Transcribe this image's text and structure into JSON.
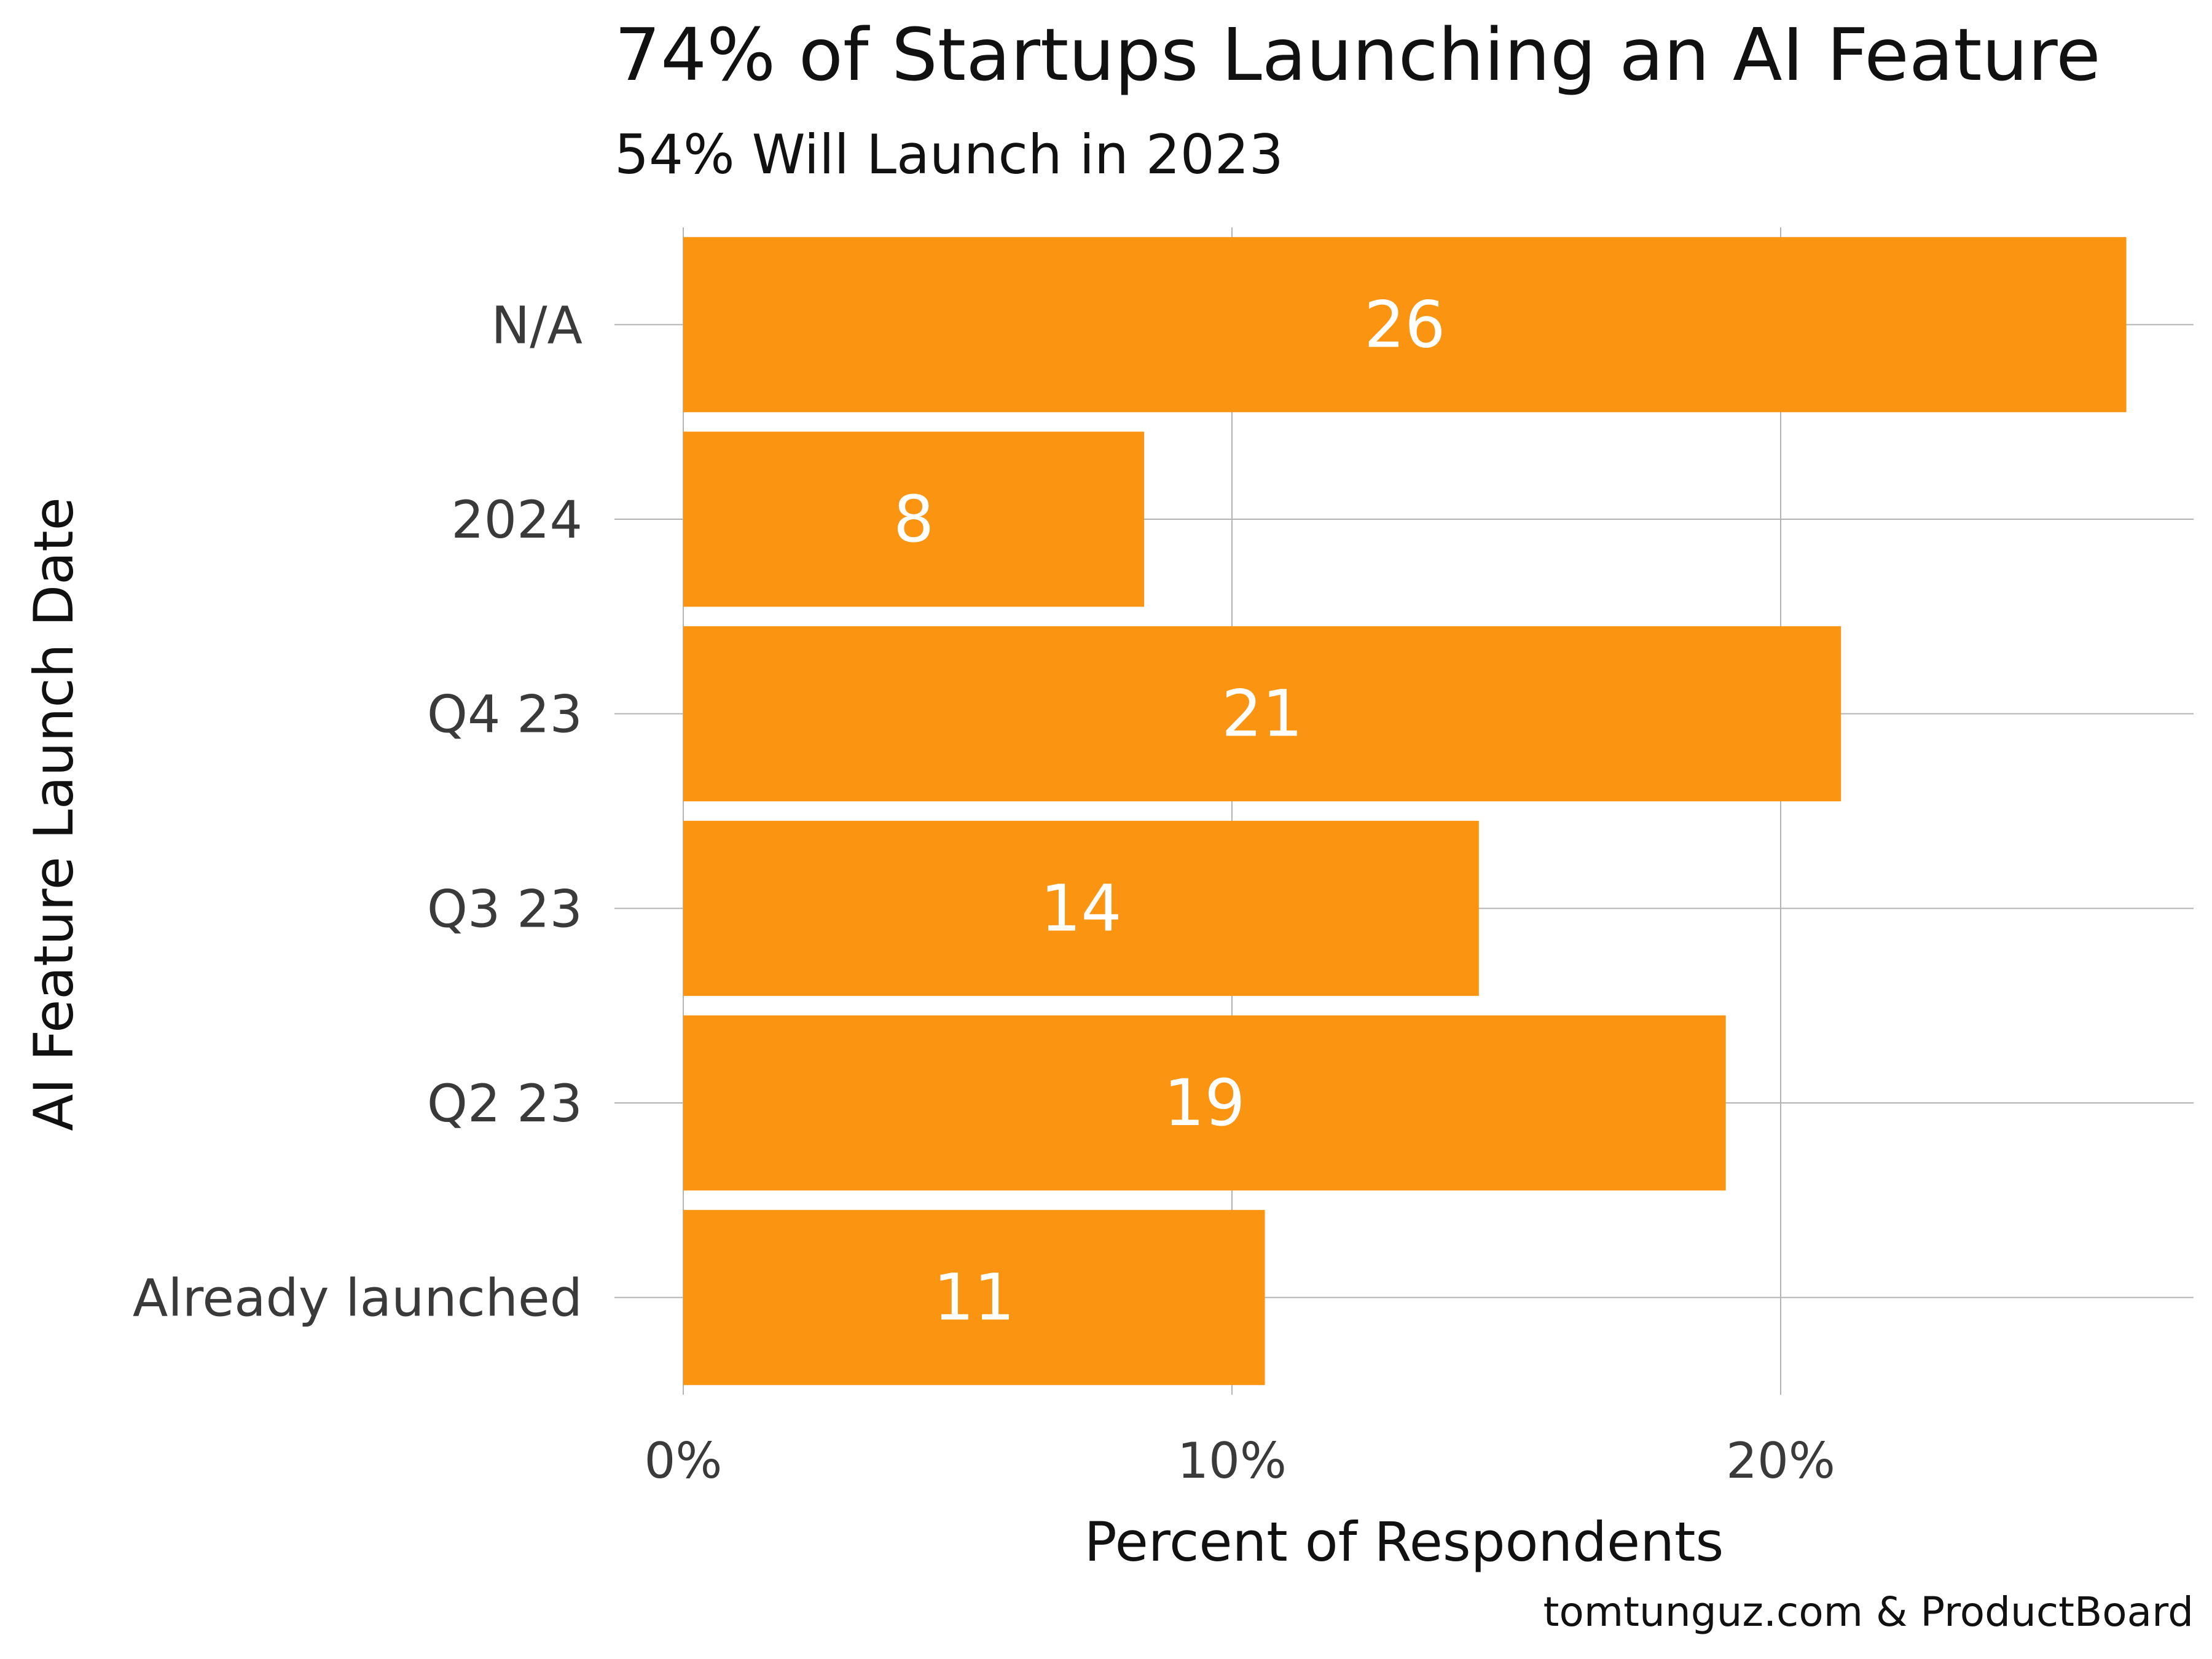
{
  "chart_data": {
    "type": "bar",
    "orientation": "horizontal",
    "title": "74% of Startups Launching an AI Feature",
    "subtitle": "54% Will Launch in 2023",
    "source": "tomtunguz.com & ProductBoard",
    "xlabel": "Percent of Respondents",
    "ylabel": "AI Feature Launch Date",
    "categories": [
      "N/A",
      "2024",
      "Q4 23",
      "Q3 23",
      "Q2 23",
      "Already launched"
    ],
    "values": [
      26.3,
      8.4,
      21.1,
      14.5,
      19.0,
      10.6
    ],
    "value_labels": [
      "26",
      "8",
      "21",
      "14",
      "19",
      "11"
    ],
    "xlim": [
      0,
      27.5
    ],
    "x_ticks": [
      0,
      10,
      20
    ],
    "x_tick_labels": [
      "0%",
      "10%",
      "20%"
    ],
    "bar_color": "#FB9410",
    "grid": true,
    "legend": "none"
  }
}
